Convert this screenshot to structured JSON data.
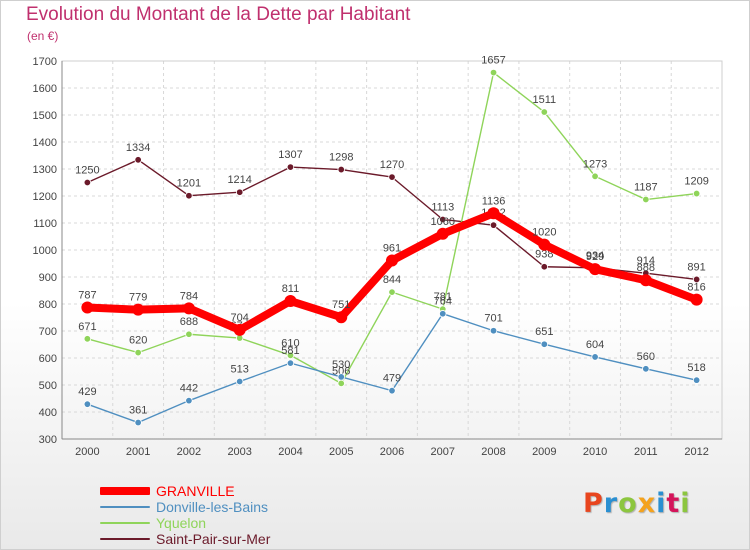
{
  "title": "Evolution du Montant de la Dette par Habitant",
  "subtitle": "(en €)",
  "brand": {
    "text": "Proxiti",
    "colors": [
      "#e8451e",
      "#2a8fd1",
      "#8cc63f",
      "#f4a21d",
      "#2a8fd1",
      "#d4145a",
      "#8cc63f"
    ]
  },
  "chart_data": {
    "type": "line",
    "xlabel": "",
    "ylabel": "",
    "x": [
      "2000",
      "2001",
      "2002",
      "2003",
      "2004",
      "2005",
      "2006",
      "2007",
      "2008",
      "2009",
      "2010",
      "2011",
      "2012"
    ],
    "ylim": [
      300,
      1700
    ],
    "yticks": [
      300,
      400,
      500,
      600,
      700,
      800,
      900,
      1000,
      1100,
      1200,
      1300,
      1400,
      1500,
      1600,
      1700
    ],
    "grid": true,
    "legend_position": "bottom-left",
    "series": [
      {
        "name": "Saint-Pair-sur-Mer",
        "color": "#6b1a2a",
        "values": [
          1250,
          1334,
          1201,
          1214,
          1307,
          1298,
          1270,
          1113,
          1092,
          938,
          934,
          914,
          891
        ]
      },
      {
        "name": "Yquelon",
        "color": "#8fd45a",
        "values": [
          671,
          620,
          688,
          674,
          610,
          506,
          844,
          781,
          1657,
          1511,
          1273,
          1187,
          1209
        ]
      },
      {
        "name": "Donville-les-Bains",
        "color": "#4f8fc0",
        "values": [
          429,
          361,
          442,
          513,
          581,
          530,
          479,
          764,
          701,
          651,
          604,
          560,
          518
        ]
      },
      {
        "name": "GRANVILLE",
        "color": "#ff0000",
        "values": [
          787,
          779,
          784,
          704,
          811,
          751,
          961,
          1060,
          1136,
          1020,
          929,
          888,
          816
        ]
      }
    ]
  },
  "legend": [
    {
      "label": "GRANVILLE",
      "color": "#ff0000"
    },
    {
      "label": "Donville-les-Bains",
      "color": "#4f8fc0"
    },
    {
      "label": "Yquelon",
      "color": "#8fd45a"
    },
    {
      "label": "Saint-Pair-sur-Mer",
      "color": "#6b1a2a"
    }
  ]
}
